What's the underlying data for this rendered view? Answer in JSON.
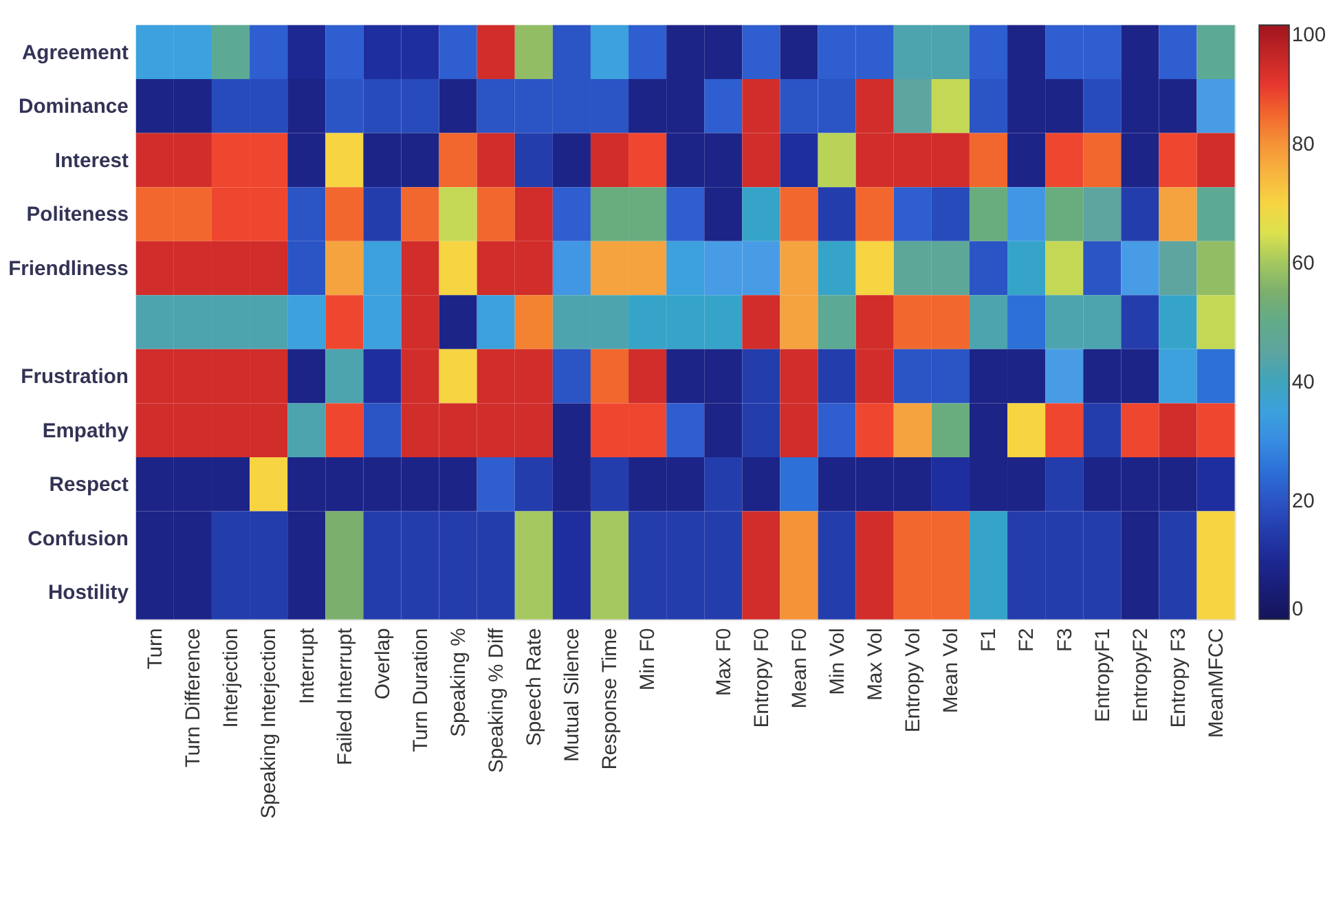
{
  "chart_data": {
    "type": "heatmap",
    "categories": [
      "Turn",
      "Turn Difference",
      "Interjection",
      "Speaking Interjection",
      "Interrupt",
      "Failed Interrupt",
      "Overlap",
      "Turn Duration",
      "Speaking %",
      "Speaking % Diff",
      "Speech Rate",
      "Mutual Silence",
      "Response Time",
      "Min F0",
      null,
      "Max F0",
      "Entropy F0",
      "Mean F0",
      "Min Vol",
      "Max Vol",
      "Entropy Vol",
      "Mean Vol",
      "F1",
      "F2",
      "F3",
      "EntropyF1",
      "EntropyF2",
      "Entropy F3",
      "MeanMFCC"
    ],
    "y_categories": [
      "Agreement",
      "Dominance",
      "Interest",
      "Politeness",
      "Friendliness",
      null,
      "Frustration",
      "Empathy",
      "Respect",
      "Confusion",
      "Hostility"
    ],
    "cells": [
      [
        35,
        35,
        48,
        22,
        10,
        22,
        12,
        12,
        22,
        93,
        58,
        20,
        35,
        22,
        8,
        8,
        22,
        8,
        22,
        22,
        42,
        42,
        22,
        8,
        22,
        22,
        8,
        22,
        48
      ],
      [
        8,
        8,
        18,
        18,
        8,
        20,
        18,
        18,
        8,
        20,
        20,
        20,
        20,
        8,
        8,
        22,
        93,
        20,
        20,
        93,
        45,
        63,
        20,
        8,
        8,
        18,
        8,
        8,
        33
      ],
      [
        93,
        93,
        88,
        88,
        8,
        70,
        8,
        8,
        85,
        93,
        15,
        8,
        93,
        88,
        8,
        8,
        93,
        12,
        62,
        93,
        93,
        93,
        85,
        8,
        88,
        85,
        8,
        88,
        93
      ],
      [
        85,
        85,
        88,
        88,
        20,
        85,
        15,
        85,
        63,
        85,
        93,
        22,
        52,
        52,
        22,
        8,
        38,
        85,
        15,
        85,
        22,
        18,
        52,
        32,
        52,
        45,
        15,
        78,
        48
      ],
      [
        93,
        93,
        93,
        93,
        20,
        78,
        35,
        93,
        70,
        93,
        93,
        32,
        78,
        78,
        35,
        33,
        33,
        78,
        38,
        70,
        47,
        47,
        20,
        38,
        63,
        20,
        33,
        45,
        58
      ],
      [
        42,
        42,
        42,
        42,
        35,
        88,
        35,
        93,
        8,
        35,
        82,
        42,
        42,
        38,
        38,
        38,
        93,
        78,
        48,
        93,
        85,
        85,
        42,
        25,
        42,
        42,
        15,
        38,
        63
      ],
      [
        93,
        93,
        93,
        93,
        8,
        42,
        12,
        93,
        70,
        93,
        93,
        20,
        85,
        93,
        8,
        8,
        15,
        93,
        15,
        93,
        20,
        20,
        8,
        8,
        33,
        8,
        8,
        35,
        25
      ],
      [
        93,
        93,
        93,
        93,
        42,
        88,
        20,
        93,
        93,
        93,
        93,
        8,
        88,
        88,
        22,
        8,
        15,
        93,
        22,
        88,
        78,
        52,
        8,
        70,
        88,
        15,
        88,
        93,
        88
      ],
      [
        8,
        8,
        8,
        70,
        8,
        8,
        8,
        8,
        8,
        22,
        15,
        8,
        15,
        8,
        8,
        15,
        8,
        25,
        8,
        8,
        8,
        12,
        8,
        8,
        15,
        8,
        8,
        8,
        12
      ],
      [
        8,
        8,
        15,
        15,
        8,
        55,
        15,
        15,
        15,
        15,
        60,
        12,
        60,
        15,
        15,
        15,
        93,
        80,
        15,
        93,
        85,
        85,
        38,
        15,
        15,
        15,
        8,
        15,
        70
      ],
      [
        8,
        8,
        15,
        15,
        8,
        55,
        15,
        15,
        15,
        15,
        60,
        12,
        60,
        15,
        15,
        15,
        93,
        80,
        15,
        93,
        85,
        85,
        38,
        15,
        15,
        15,
        8,
        15,
        70
      ]
    ],
    "clim": [
      0,
      100
    ],
    "cticks": [
      0,
      20,
      40,
      60,
      80,
      100
    ]
  }
}
